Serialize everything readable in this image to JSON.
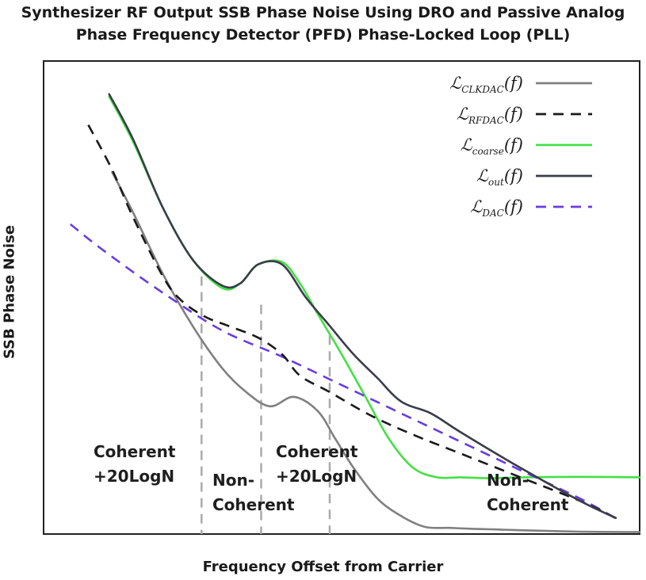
{
  "chart_data": {
    "type": "line",
    "title_lines": [
      "Synthesizer RF Output SSB Phase Noise Using DRO and Passive Analog",
      "Phase Frequency Detector (PFD) Phase-Locked Loop (PLL)"
    ],
    "xlabel": "Frequency Offset from Carrier",
    "ylabel": "SSB Phase Noise",
    "xlim": [
      0,
      100
    ],
    "ylim": [
      0,
      100
    ],
    "grid": false,
    "legend_position": "top-right",
    "series": [
      {
        "name": "ℒ",
        "sub": "CLKDAC",
        "color": "#808080",
        "dash": "solid",
        "x": [
          11.5,
          15,
          20,
          25,
          30,
          34,
          38,
          42,
          46,
          49,
          52,
          56,
          60,
          64,
          68,
          72,
          75,
          80,
          90,
          100
        ],
        "y": [
          76.5,
          68,
          55,
          44,
          35,
          30,
          27,
          29,
          26,
          20,
          14,
          7.5,
          3.8,
          1.5,
          1.3,
          1.1,
          1.0,
          0.8,
          0.5,
          0.4
        ]
      },
      {
        "name": "ℒ",
        "sub": "RFDAC",
        "color": "#1a1a1a",
        "dash": "dashed",
        "x": [
          7.5,
          11.5,
          15,
          20,
          23,
          27,
          31,
          36,
          40,
          43,
          48,
          55,
          62,
          70,
          80,
          90,
          96
        ],
        "y": [
          86.5,
          77,
          67,
          54.5,
          49.5,
          46,
          44,
          41.5,
          38,
          33.5,
          30,
          25,
          21,
          17,
          12,
          7,
          3.4
        ]
      },
      {
        "name": "ℒ",
        "sub": "coarse",
        "color": "#44e044",
        "dash": "solid",
        "x": [
          11,
          15,
          20,
          25,
          30,
          33,
          36,
          40,
          43,
          46,
          50,
          54,
          58,
          62,
          66,
          70,
          75,
          80,
          90,
          100
        ],
        "y": [
          92.5,
          83,
          69,
          58,
          52,
          53,
          57,
          57.5,
          53,
          46.5,
          38,
          29,
          20,
          14,
          12,
          12,
          11.8,
          12,
          12.1,
          12
        ]
      },
      {
        "name": "ℒ",
        "sub": "out",
        "color": "#3a3d4a",
        "dash": "solid",
        "x": [
          11,
          15,
          20,
          25,
          30,
          33,
          36,
          40,
          44,
          48,
          52,
          56,
          60,
          65,
          70,
          80,
          90,
          96
        ],
        "y": [
          93,
          83.5,
          69,
          58,
          52.5,
          53,
          57,
          57,
          50,
          44,
          38,
          33,
          28,
          25.5,
          21.5,
          14,
          7,
          3.4
        ]
      },
      {
        "name": "ℒ",
        "sub": "DAC",
        "color": "#6a3de0",
        "dash": "dashed",
        "x": [
          4.5,
          10,
          20,
          30,
          40,
          50,
          60,
          70,
          80,
          90,
          96
        ],
        "y": [
          65.5,
          60,
          51,
          43,
          37.5,
          31.5,
          25.5,
          19.5,
          13.5,
          7.5,
          3.3
        ]
      }
    ],
    "vlines": [
      {
        "x": 26.5,
        "y_top": 54.5
      },
      {
        "x": 36.5,
        "y_top": 48.5
      },
      {
        "x": 48,
        "y_top": 42
      }
    ],
    "regions": [
      {
        "lines": [
          "Coherent",
          "+20LogN"
        ]
      },
      {
        "lines": [
          "Non-",
          "Coherent"
        ]
      },
      {
        "lines": [
          "Coherent",
          "+20LogN"
        ]
      },
      {
        "lines": [
          "Non-",
          "Coherent"
        ]
      }
    ],
    "legend_arg": "(f)"
  }
}
